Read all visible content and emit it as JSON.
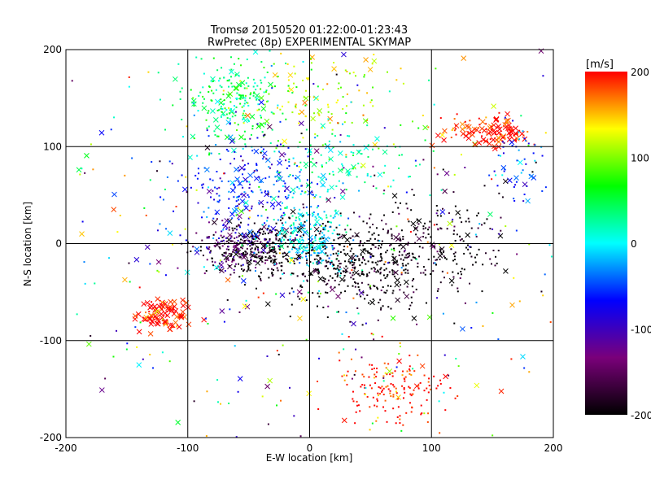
{
  "chart_data": {
    "type": "scatter",
    "title": "Tromsø 20150520 01:22:00-01:23:43",
    "subtitle": "RwPretec (8p) EXPERIMENTAL SKYMAP",
    "xlabel": "E-W location [km]",
    "ylabel": "N-S location [km]",
    "xlim": [
      -200,
      200
    ],
    "ylim": [
      -200,
      200
    ],
    "x_ticks": [
      "-200",
      "-100",
      "0",
      "100",
      "200"
    ],
    "y_ticks": [
      "-200",
      "-100",
      "0",
      "100",
      "200"
    ],
    "grid": true,
    "colorbar": {
      "label": "[m/s]",
      "range": [
        -200,
        200
      ],
      "ticks": [
        "200",
        "100",
        "0",
        "-100",
        "-200"
      ],
      "colors": [
        "#000000",
        "#7a007a",
        "#0000ff",
        "#00ffff",
        "#00ff00",
        "#ffff00",
        "#ff0000"
      ]
    },
    "markers": [
      "point",
      "cross"
    ],
    "clusters": [
      {
        "cx": -120,
        "cy": -72,
        "sx": 12,
        "sy": 9,
        "v": 200,
        "n": 90,
        "cross_ratio": 0.85
      },
      {
        "cx": 155,
        "cy": 115,
        "sx": 12,
        "sy": 8,
        "v": 200,
        "n": 80,
        "cross_ratio": 0.7
      },
      {
        "cx": 130,
        "cy": 118,
        "sx": 15,
        "sy": 8,
        "v": 195,
        "n": 40,
        "cross_ratio": 0.4
      },
      {
        "cx": 70,
        "cy": -150,
        "sx": 25,
        "sy": 18,
        "v": 200,
        "n": 170,
        "cross_ratio": 0.05
      },
      {
        "cx": -45,
        "cy": -5,
        "sx": 20,
        "sy": 14,
        "v": -190,
        "n": 300,
        "cross_ratio": 0.1
      },
      {
        "cx": -60,
        "cy": 0,
        "sx": 15,
        "sy": 12,
        "v": -120,
        "n": 90,
        "cross_ratio": 0.1
      },
      {
        "cx": 0,
        "cy": 5,
        "sx": 15,
        "sy": 18,
        "v": 0,
        "n": 260,
        "cross_ratio": 0.08
      },
      {
        "cx": 40,
        "cy": -20,
        "sx": 40,
        "sy": 22,
        "v": -200,
        "n": 500,
        "cross_ratio": 0.1
      },
      {
        "cx": -60,
        "cy": 150,
        "sx": 22,
        "sy": 22,
        "v": 40,
        "n": 220,
        "cross_ratio": 0.15
      },
      {
        "cx": 10,
        "cy": 150,
        "sx": 35,
        "sy": 30,
        "v": 120,
        "n": 140,
        "cross_ratio": 0.1
      },
      {
        "cx": -50,
        "cy": 60,
        "sx": 30,
        "sy": 25,
        "v": -60,
        "n": 220,
        "cross_ratio": 0.15
      },
      {
        "cx": 20,
        "cy": 80,
        "sx": 30,
        "sy": 20,
        "v": 20,
        "n": 120,
        "cross_ratio": 0.15
      },
      {
        "cx": 110,
        "cy": 10,
        "sx": 30,
        "sy": 25,
        "v": -200,
        "n": 130,
        "cross_ratio": 0.1
      },
      {
        "cx": 170,
        "cy": 80,
        "sx": 15,
        "sy": 25,
        "v": -50,
        "n": 50,
        "cross_ratio": 0.2
      },
      {
        "cx": 0,
        "cy": 0,
        "sx": 140,
        "sy": 130,
        "v": null,
        "n": 500,
        "cross_ratio": 0.25
      }
    ]
  }
}
